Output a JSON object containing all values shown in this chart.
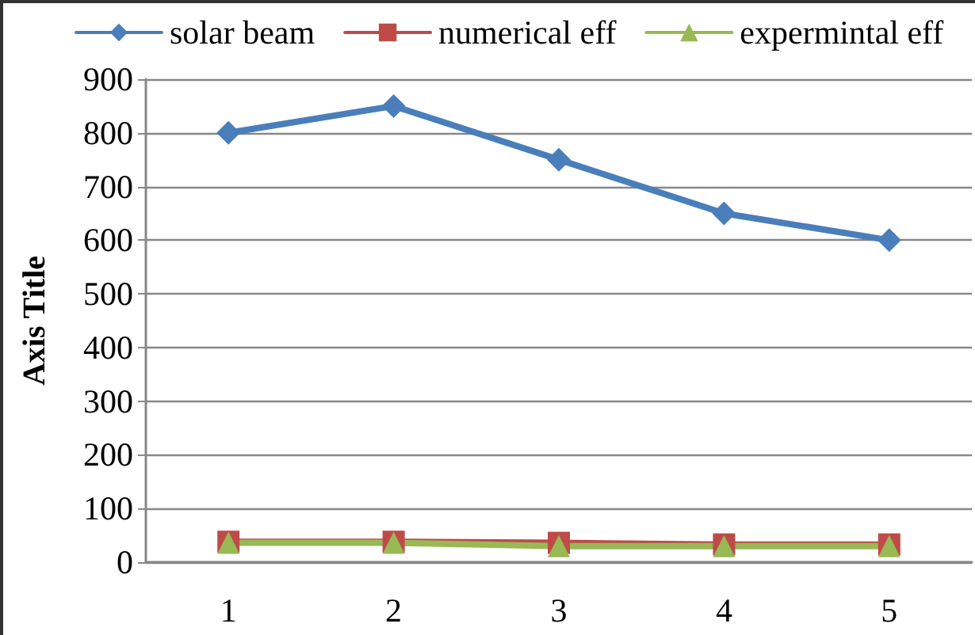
{
  "chart_data": {
    "type": "line",
    "ylabel": "Axis Title",
    "categories": [
      "1",
      "2",
      "3",
      "4",
      "5"
    ],
    "series": [
      {
        "name": "solar beam",
        "color": "#4a7ebb",
        "marker": "diamond",
        "values": [
          800,
          850,
          750,
          650,
          600
        ]
      },
      {
        "name": "numerical eff",
        "color": "#be4b48",
        "marker": "square",
        "values": [
          38,
          38,
          36,
          33,
          33
        ]
      },
      {
        "name": "expermintal eff",
        "color": "#98b954",
        "marker": "triangle",
        "values": [
          36,
          36,
          30,
          30,
          30
        ]
      }
    ],
    "ylim": [
      0,
      900
    ],
    "yticks": [
      0,
      100,
      200,
      300,
      400,
      500,
      600,
      700,
      800,
      900
    ],
    "grid": "y",
    "legend": "top",
    "line_style": "solid"
  }
}
